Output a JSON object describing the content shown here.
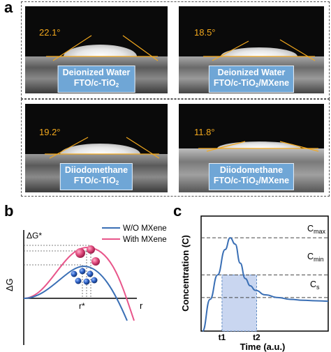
{
  "panel_a": {
    "letter": "a",
    "cells": [
      {
        "angle": "22.1°",
        "line1": "Deionized Water",
        "line2": "FTO/c-TiO",
        "sub": "2",
        "tail": ""
      },
      {
        "angle": "18.5°",
        "line1": "Deionized Water",
        "line2": "FTO/c-TiO",
        "sub": "2",
        "tail": "/MXene"
      },
      {
        "angle": "19.2°",
        "line1": "Diiodomethane",
        "line2": "FTO/c-TiO",
        "sub": "2",
        "tail": ""
      },
      {
        "angle": "11.8°",
        "line1": "Diiodomethane",
        "line2": "FTO/c-TiO",
        "sub": "2",
        "tail": "/MXene"
      }
    ]
  },
  "panel_b": {
    "letter": "b",
    "y_label": "ΔG",
    "barrier_label": "ΔG*",
    "x_label": "r",
    "critical_label": "r*",
    "legend": [
      {
        "name": "W/O MXene",
        "color": "#3a6fb5"
      },
      {
        "name": "With MXene",
        "color": "#e8558a"
      }
    ]
  },
  "panel_c": {
    "letter": "c",
    "ylabel": "Concentration (C)",
    "xlabel": "Time (a.u.)",
    "levels": [
      {
        "name": "C",
        "sub": "max"
      },
      {
        "name": "C",
        "sub": "min"
      },
      {
        "name": "C",
        "sub": "s"
      }
    ],
    "ticks": [
      "t1",
      "t2"
    ],
    "curve_color": "#3a6fb5",
    "shade_color": "#c9d6f0"
  },
  "chart_data": {
    "type": "line",
    "title": "",
    "xlabel": "Time (a.u.)",
    "ylabel": "Concentration (C)",
    "x_markers": [
      "t1",
      "t2"
    ],
    "y_levels": [
      "Cmax",
      "Cmin",
      "Cs"
    ],
    "series": [
      {
        "name": "",
        "x": [
          0,
          0.6,
          1.2,
          1.8,
          2.2,
          2.6,
          3.0,
          3.4,
          3.8,
          4.2,
          5.0,
          6.0,
          7.0,
          8.0,
          9.0,
          10.0
        ],
        "y": [
          0.0,
          0.35,
          0.62,
          0.9,
          1.03,
          0.96,
          0.75,
          0.58,
          0.5,
          0.45,
          0.4,
          0.37,
          0.35,
          0.34,
          0.335,
          0.33
        ]
      }
    ]
  }
}
